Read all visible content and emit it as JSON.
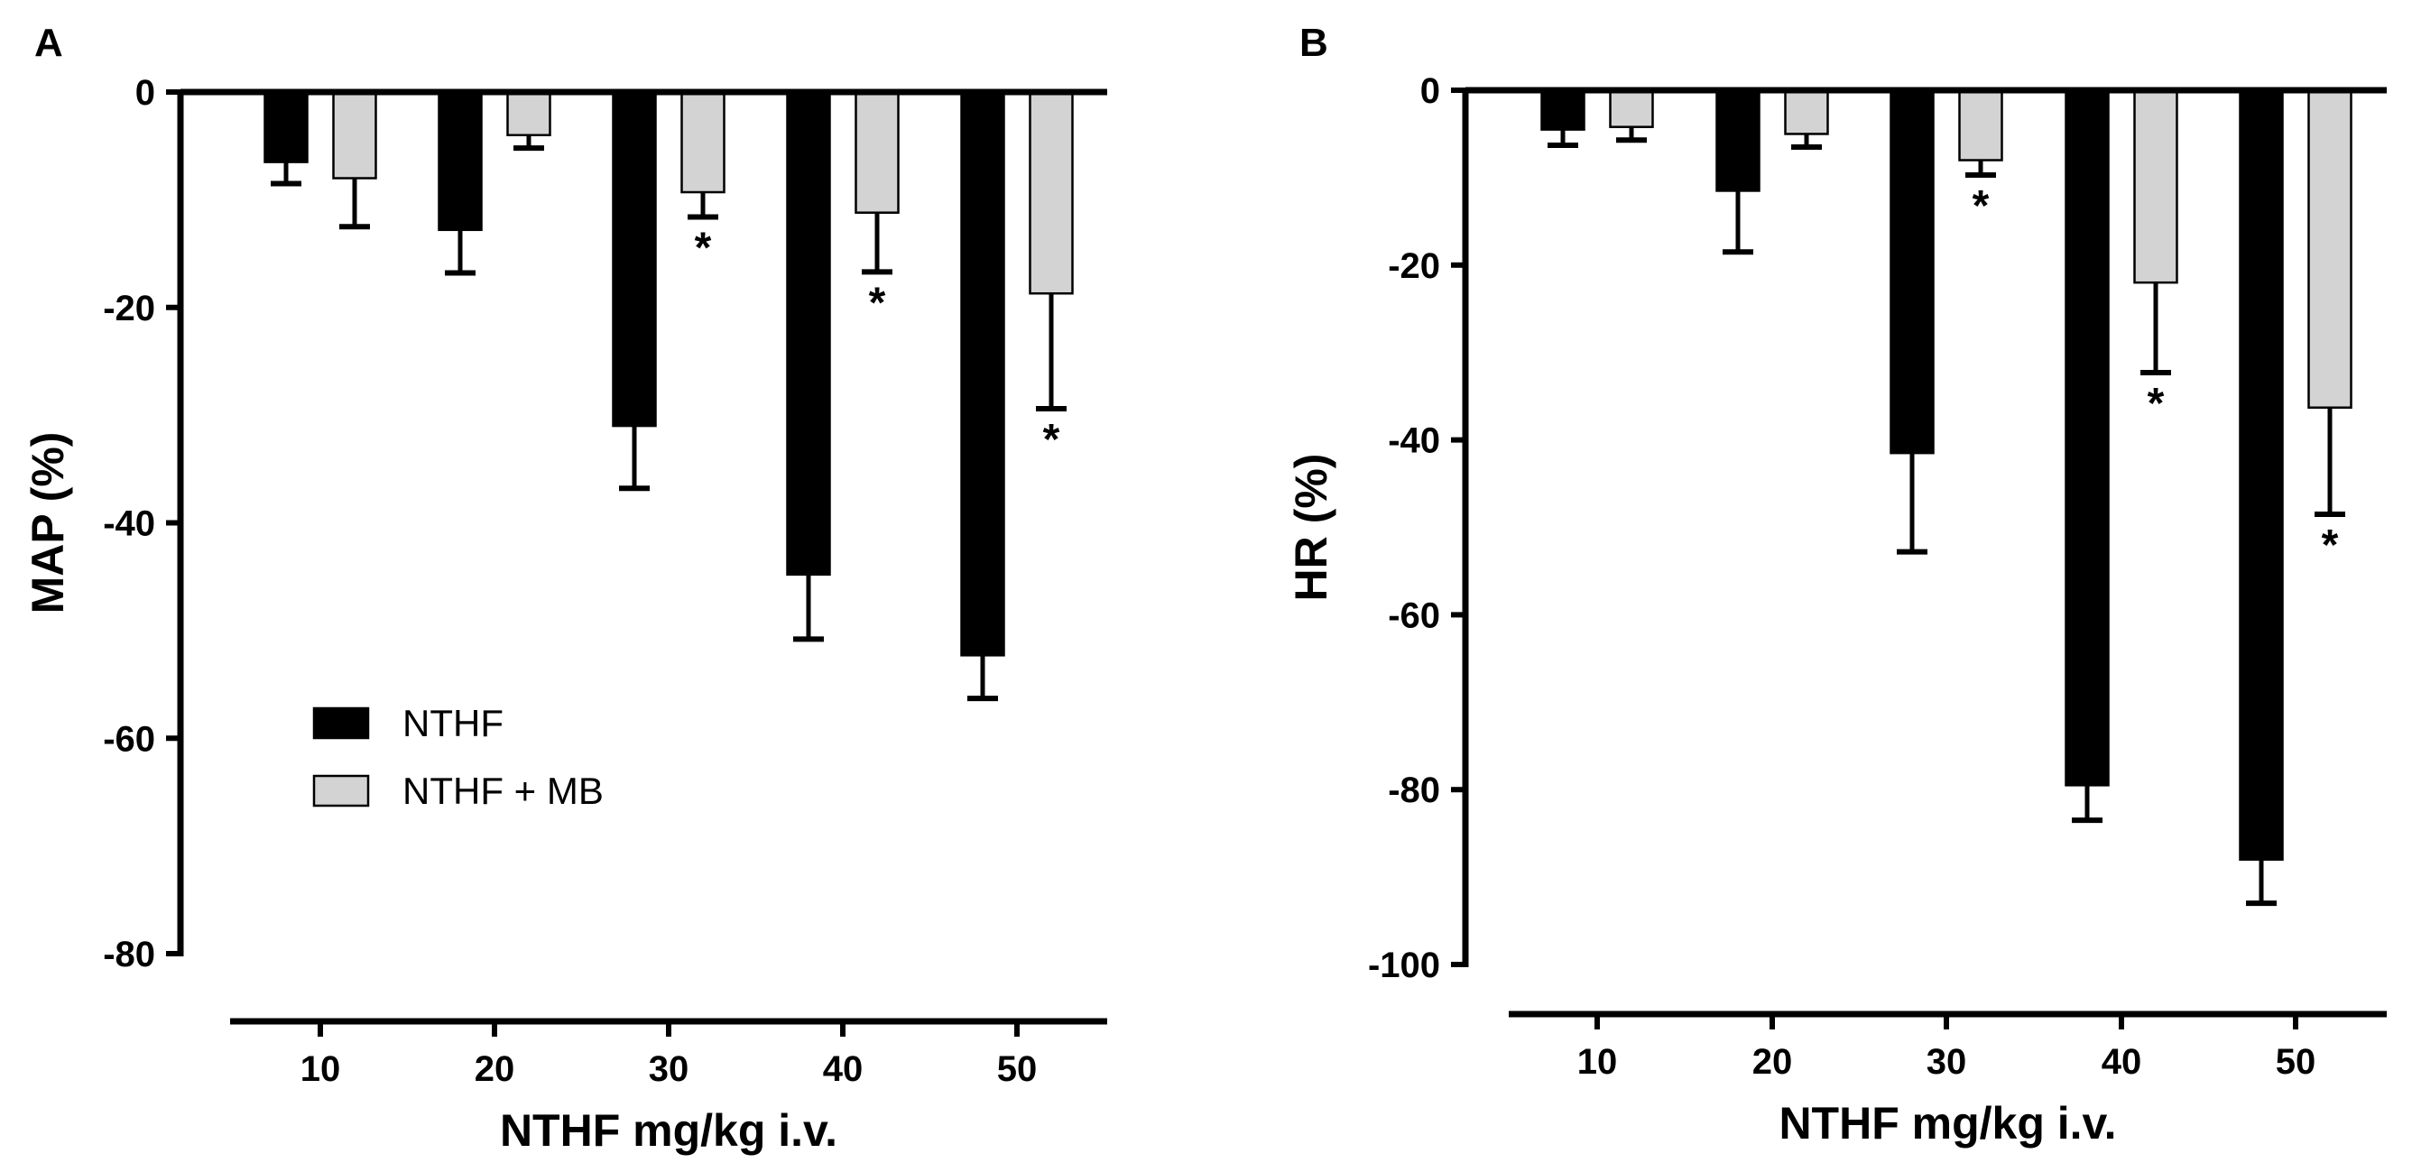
{
  "chart_data": [
    {
      "type": "bar",
      "panel": "A",
      "categories": [
        "10",
        "20",
        "30",
        "40",
        "50"
      ],
      "series": [
        {
          "name": "NTHF",
          "color": "#000000",
          "values": [
            -6.5,
            -12.8,
            -31.0,
            -44.8,
            -52.3
          ],
          "errors": [
            2.0,
            4.0,
            5.8,
            6.0,
            4.0
          ]
        },
        {
          "name": "NTHF + MB",
          "color": "#d3d3d3",
          "values": [
            -8.0,
            -4.0,
            -9.3,
            -11.2,
            -18.7
          ],
          "errors": [
            4.5,
            1.2,
            2.3,
            5.5,
            10.7
          ]
        }
      ],
      "significance": [
        {
          "category": "30",
          "series": "NTHF + MB",
          "label": "*"
        },
        {
          "category": "40",
          "series": "NTHF + MB",
          "label": "*"
        },
        {
          "category": "50",
          "series": "NTHF + MB",
          "label": "*"
        }
      ],
      "xlabel": "NTHF mg/kg i.v.",
      "ylabel": "MAP (%)",
      "ylim": [
        -80,
        0
      ],
      "yticks": [
        0,
        -20,
        -40,
        -60,
        -80
      ],
      "legend": [
        "NTHF",
        "NTHF + MB"
      ],
      "legend_position": "lower-left",
      "grid": false
    },
    {
      "type": "bar",
      "panel": "B",
      "categories": [
        "10",
        "20",
        "30",
        "40",
        "50"
      ],
      "series": [
        {
          "name": "NTHF",
          "color": "#000000",
          "values": [
            -4.5,
            -11.5,
            -41.5,
            -79.5,
            -88.0
          ],
          "errors": [
            1.8,
            7.0,
            11.3,
            4.0,
            5.0
          ]
        },
        {
          "name": "NTHF + MB",
          "color": "#d3d3d3",
          "values": [
            -4.2,
            -5.0,
            -8.0,
            -22.0,
            -36.3
          ],
          "errors": [
            1.5,
            1.5,
            1.7,
            10.3,
            12.2
          ]
        }
      ],
      "significance": [
        {
          "category": "30",
          "series": "NTHF + MB",
          "label": "*"
        },
        {
          "category": "40",
          "series": "NTHF + MB",
          "label": "*"
        },
        {
          "category": "50",
          "series": "NTHF + MB",
          "label": "*"
        }
      ],
      "xlabel": "NTHF mg/kg i.v.",
      "ylabel": "HR (%)",
      "ylim": [
        -100,
        0
      ],
      "yticks": [
        0,
        -20,
        -40,
        -60,
        -80,
        -100
      ],
      "grid": false
    }
  ]
}
